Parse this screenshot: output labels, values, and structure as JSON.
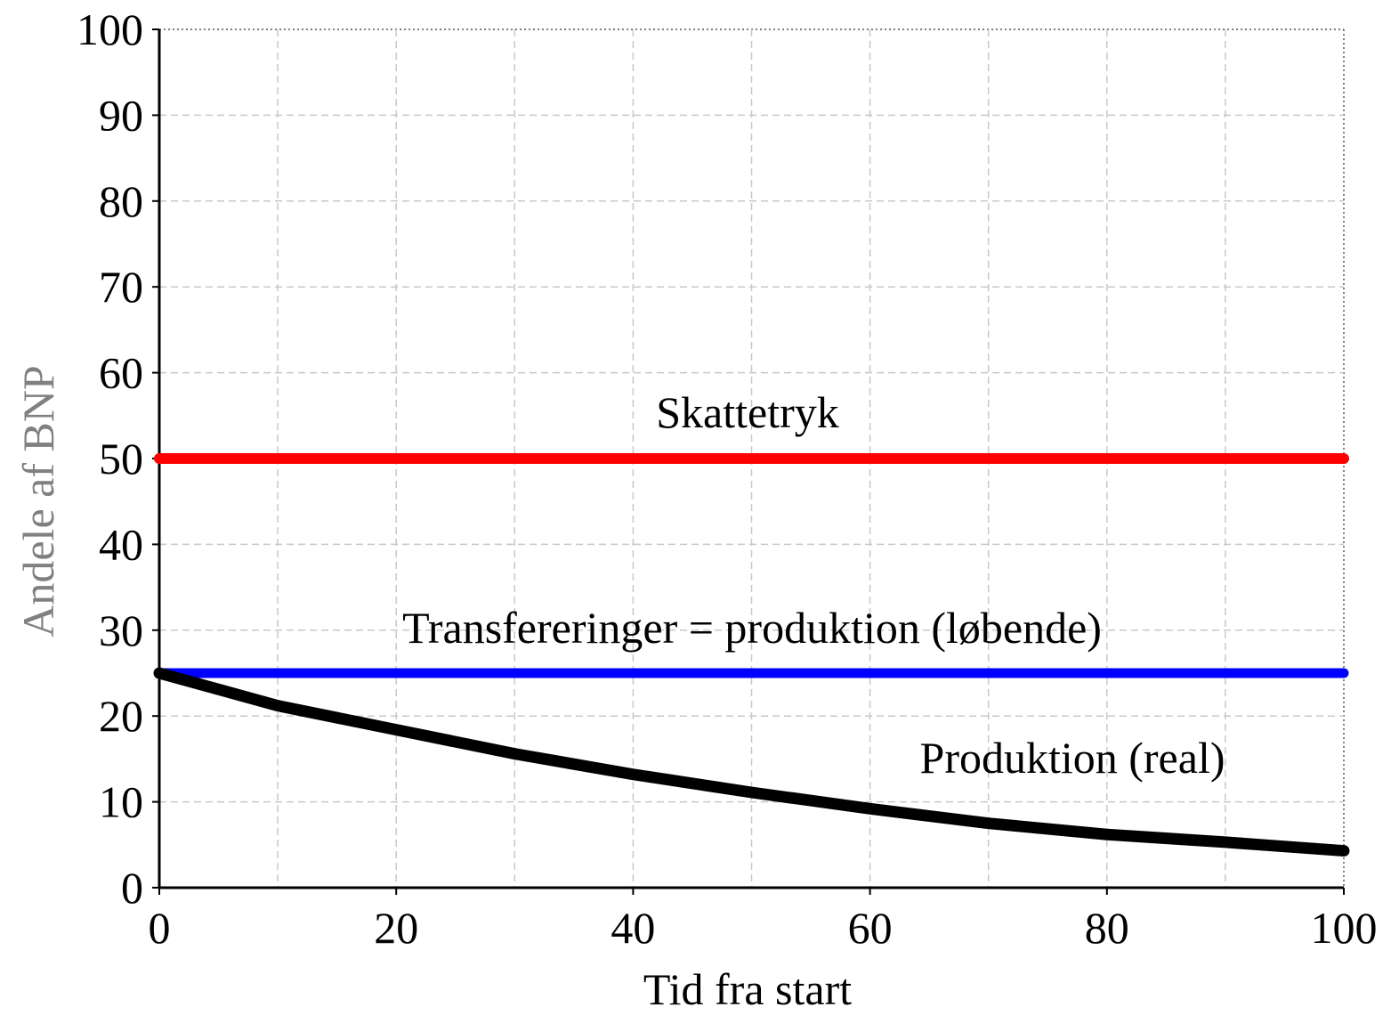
{
  "chart_data": {
    "type": "line",
    "x": [
      0,
      10,
      20,
      30,
      40,
      50,
      60,
      70,
      80,
      90,
      100
    ],
    "series": [
      {
        "name": "Skattetryk",
        "color": "#ff0000",
        "values": [
          50,
          50,
          50,
          50,
          50,
          50,
          50,
          50,
          50,
          50,
          50
        ]
      },
      {
        "name": "Transfereringer = produktion (løbende)",
        "color": "#0000ff",
        "values": [
          25,
          25,
          25,
          25,
          25,
          25,
          25,
          25,
          25,
          25,
          25
        ]
      },
      {
        "name": "Produktion (real)",
        "color": "#000000",
        "values": [
          25,
          21.2,
          18.4,
          15.6,
          13.2,
          11.1,
          9.2,
          7.5,
          6.2,
          5.3,
          4.3
        ]
      }
    ],
    "xlabel": "Tid fra start",
    "ylabel": "Andele af BNP",
    "xlim": [
      0,
      100
    ],
    "ylim": [
      0,
      100
    ],
    "xticks": [
      0,
      20,
      40,
      60,
      80,
      100
    ],
    "x_minor_ticks": [
      10,
      30,
      50,
      70,
      90
    ],
    "yticks": [
      0,
      10,
      20,
      30,
      40,
      50,
      60,
      70,
      80,
      90,
      100
    ],
    "grid": true
  }
}
